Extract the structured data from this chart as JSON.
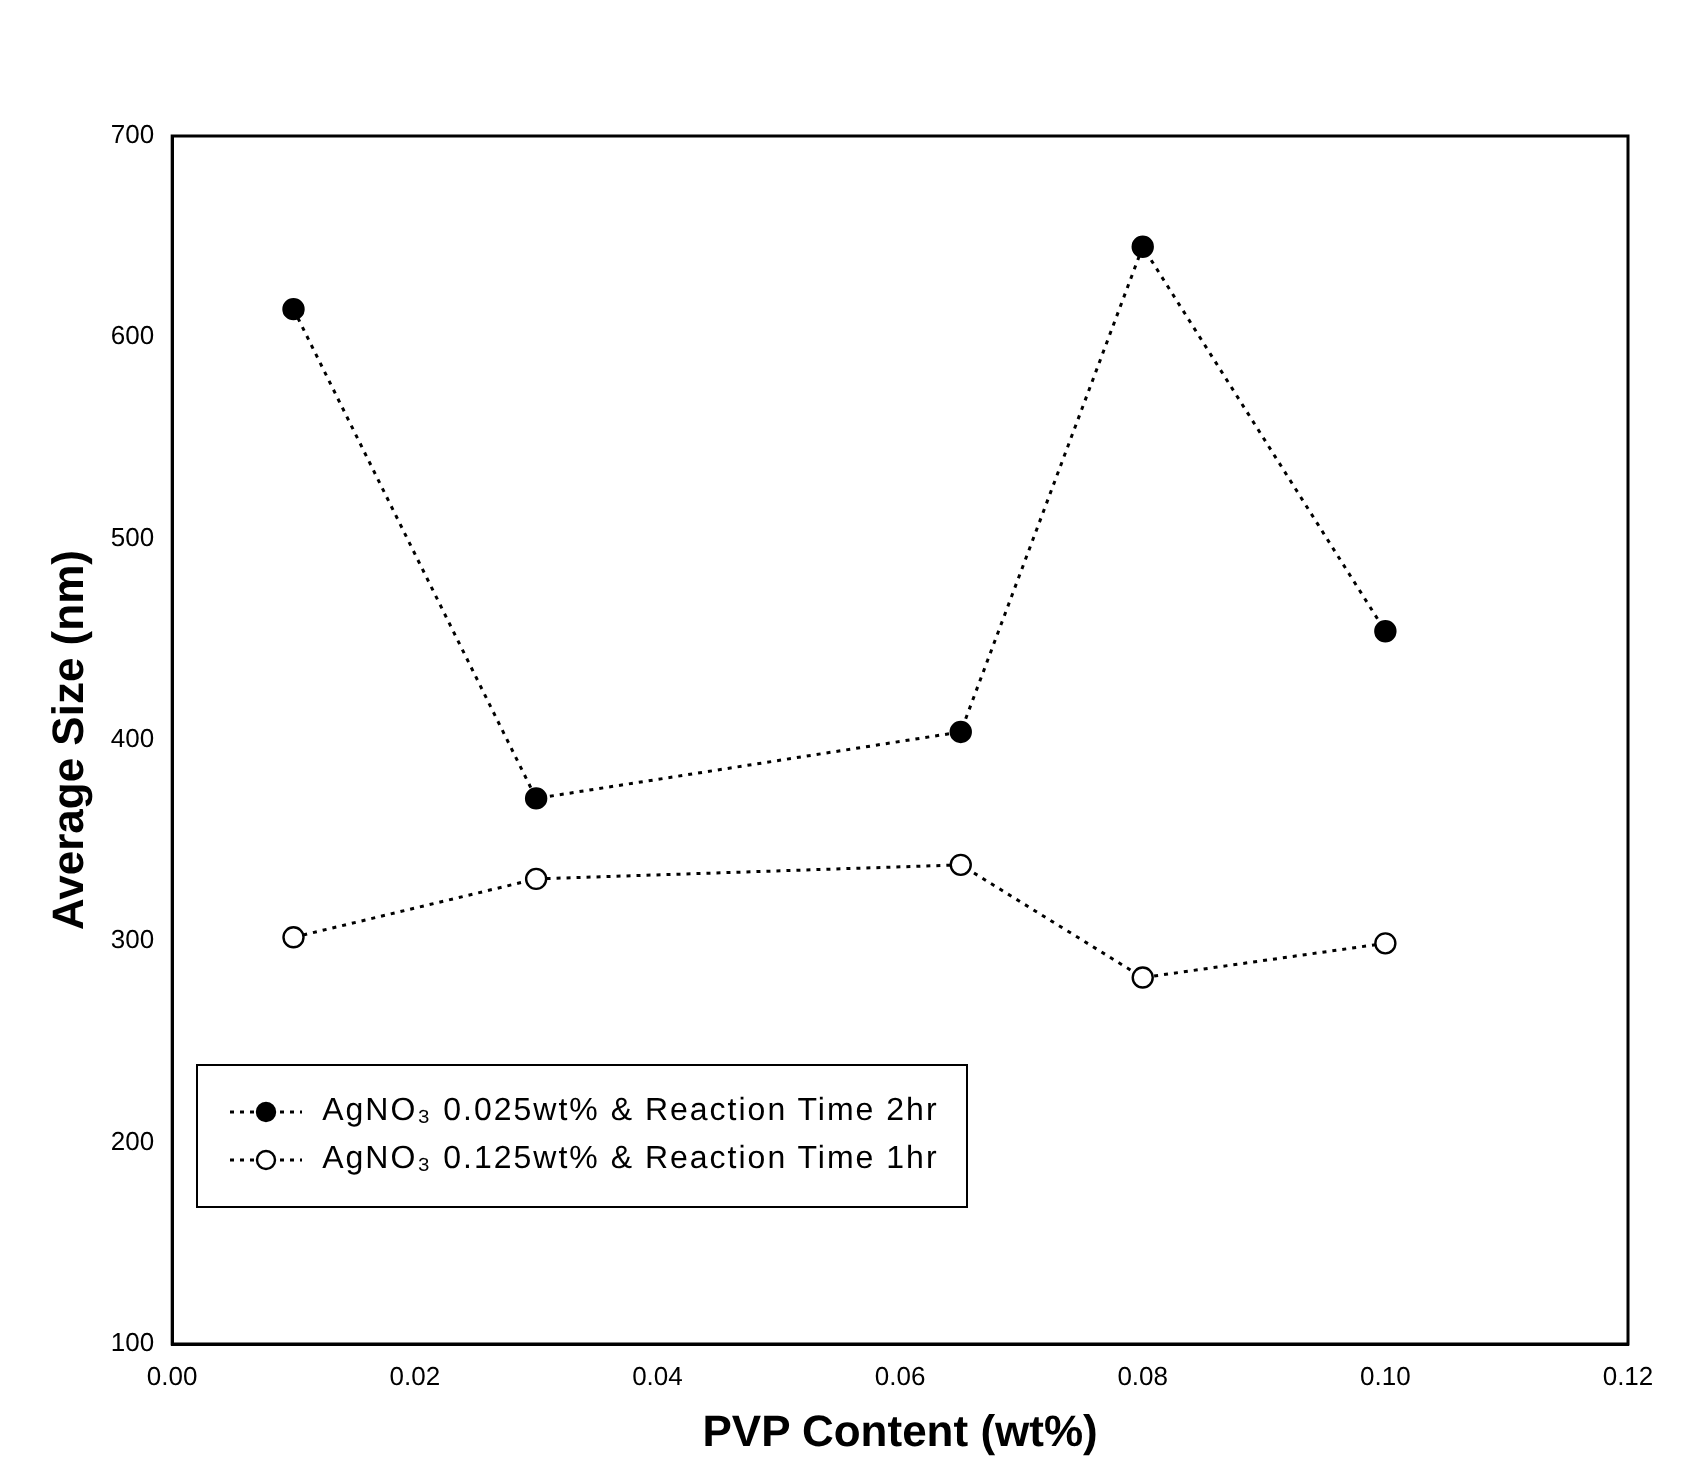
{
  "chart_data": {
    "type": "line",
    "xlabel": "PVP Content (wt%)",
    "ylabel": "Average Size (nm)",
    "series": [
      {
        "name": "AgNO₃ 0.025wt% & Reaction Time 2hr",
        "color": "#000000",
        "x": [
          0.01,
          0.03,
          0.065,
          0.08,
          0.1
        ],
        "values": [
          614,
          371,
          404,
          645,
          454
        ]
      },
      {
        "name": "AgNO₃ 0.125wt% & Reaction Time 1hr",
        "color": "#000000",
        "x": [
          0.01,
          0.03,
          0.065,
          0.08,
          0.1
        ],
        "values": [
          302,
          331,
          338,
          282,
          299
        ]
      }
    ],
    "xlim": [
      0,
      0.12
    ],
    "xticks": [
      {
        "value": 0,
        "label": "0.00"
      },
      {
        "value": 0.02,
        "label": "0.02"
      },
      {
        "value": 0.04,
        "label": "0.04"
      },
      {
        "value": 0.06,
        "label": "0.06"
      },
      {
        "value": 0.08,
        "label": "0.08"
      },
      {
        "value": 0.1,
        "label": "0.10"
      },
      {
        "value": 0.12,
        "label": "0.12"
      }
    ],
    "ylim": [
      100,
      700
    ],
    "yticks": [
      100,
      200,
      300,
      400,
      500,
      600,
      700
    ],
    "grid": false,
    "legend": "bottom left",
    "marker": "circle",
    "line_style": "dotted"
  }
}
